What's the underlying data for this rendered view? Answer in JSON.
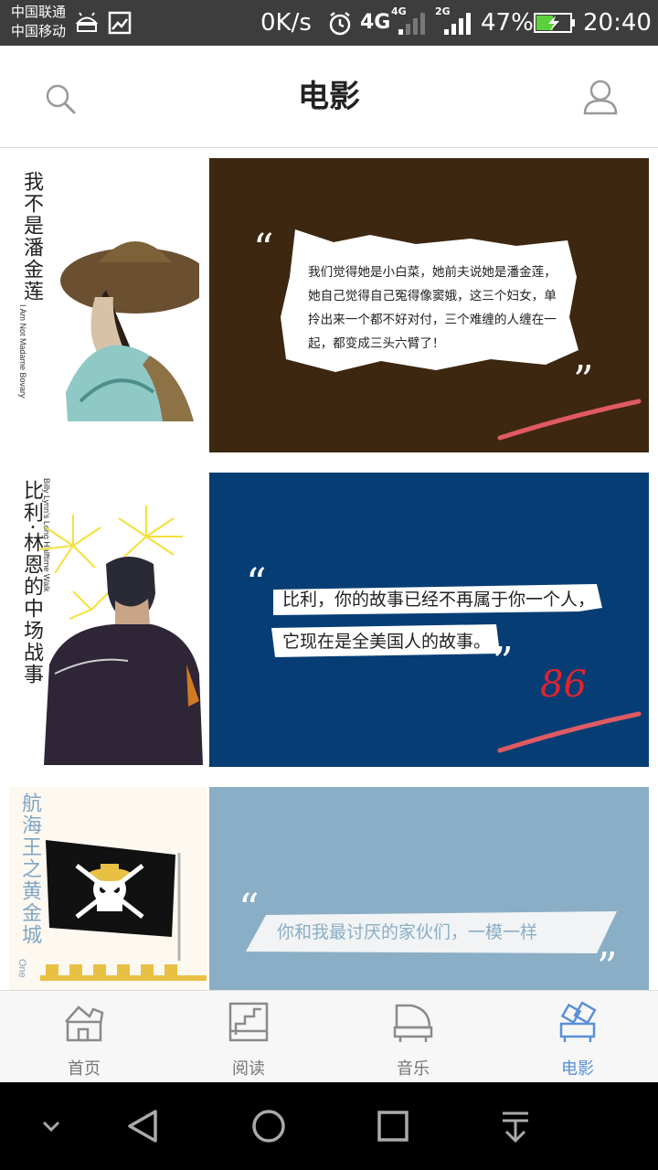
{
  "status_bar": {
    "carrier_1": "中国联通",
    "carrier_2": "中国移动",
    "net_speed": "0K/s",
    "network_1": "4G",
    "network_1_small": "4G",
    "network_2": "2G",
    "battery": "47%",
    "time": "20:40"
  },
  "app_bar": {
    "title": "电影",
    "search_icon": "search-icon",
    "user_icon": "user-icon"
  },
  "cards": [
    {
      "title_cn": "我不是潘金莲",
      "title_en": "I Am Not Madame Bovary",
      "quote": "我们觉得她是小白菜，她前夫说她是潘金莲，她自己觉得自己冤得像窦娥，这三个妇女，单拎出来一个都不好对付，三个难缠的人缠在一起，都变成三头六臂了！",
      "bg_color": "#3d2710"
    },
    {
      "title_cn": "比利·林恩的中场战事",
      "title_en": "Billy Lynn's Long Halftime Walk",
      "quote_line_1": "比利，你的故事已经不再属于你一个人，",
      "quote_line_2": "它现在是全美国人的故事。",
      "score": "86",
      "bg_color": "#063d75"
    },
    {
      "title_cn": "航海王之黄金城",
      "title_en": "One",
      "quote": "你和我最讨厌的家伙们，一模一样",
      "bg_color": "#8aaec5"
    }
  ],
  "tabs": [
    {
      "label": "首页",
      "icon": "home-icon",
      "active": false
    },
    {
      "label": "阅读",
      "icon": "reading-icon",
      "active": false
    },
    {
      "label": "音乐",
      "icon": "music-icon",
      "active": false
    },
    {
      "label": "电影",
      "icon": "movie-icon",
      "active": true
    }
  ],
  "colors": {
    "accent": "#5b8fd6",
    "tab_inactive": "#777777",
    "status_bar": "#3d3d3d"
  }
}
